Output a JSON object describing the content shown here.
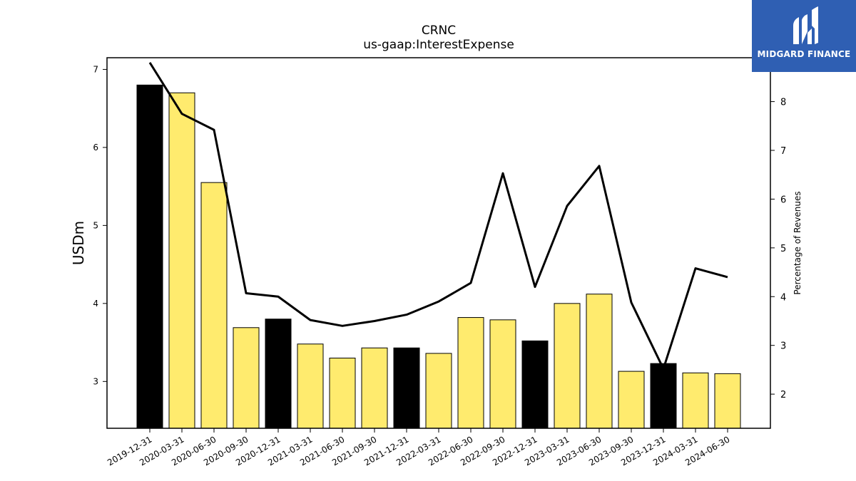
{
  "chart_data": {
    "type": "bar",
    "title": "CRNC",
    "subtitle": "us-gaap:InterestExpense",
    "ylabel": "USDm",
    "ylabel_right": "Percentage of Revenues",
    "ylim": [
      2.4,
      7.15
    ],
    "ylim_right": [
      1.3,
      8.9
    ],
    "yticks": [
      3,
      4,
      5,
      6,
      7
    ],
    "yticks_right": [
      2,
      3,
      4,
      5,
      6,
      7,
      8
    ],
    "grid": false,
    "categories": [
      "2019-12-31",
      "2020-03-31",
      "2020-06-30",
      "2020-09-30",
      "2020-12-31",
      "2021-03-31",
      "2021-06-30",
      "2021-09-30",
      "2021-12-31",
      "2022-03-31",
      "2022-06-30",
      "2022-09-30",
      "2022-12-31",
      "2023-03-31",
      "2023-06-30",
      "2023-09-30",
      "2023-12-31",
      "2024-03-31",
      "2024-06-30"
    ],
    "series": [
      {
        "type": "bar",
        "axis": "left",
        "values": [
          6.8,
          6.7,
          5.55,
          3.69,
          3.8,
          3.48,
          3.3,
          3.43,
          3.43,
          3.36,
          3.82,
          3.79,
          3.52,
          4.0,
          4.12,
          3.13,
          3.23,
          3.11,
          3.1
        ],
        "colors": [
          "#000000",
          "#ffeb6e",
          "#ffeb6e",
          "#ffeb6e",
          "#000000",
          "#ffeb6e",
          "#ffeb6e",
          "#ffeb6e",
          "#000000",
          "#ffeb6e",
          "#ffeb6e",
          "#ffeb6e",
          "#000000",
          "#ffeb6e",
          "#ffeb6e",
          "#ffeb6e",
          "#000000",
          "#ffeb6e",
          "#ffeb6e"
        ]
      },
      {
        "type": "line",
        "axis": "right",
        "color": "#000000",
        "values": [
          8.8,
          7.75,
          7.42,
          4.07,
          4.0,
          3.52,
          3.4,
          3.5,
          3.63,
          3.9,
          4.28,
          6.53,
          4.2,
          5.86,
          6.68,
          3.88,
          2.52,
          4.58,
          4.4
        ]
      }
    ]
  },
  "logo": {
    "text": "MIDGARD FINANCE",
    "background": "#2f5fb3"
  }
}
